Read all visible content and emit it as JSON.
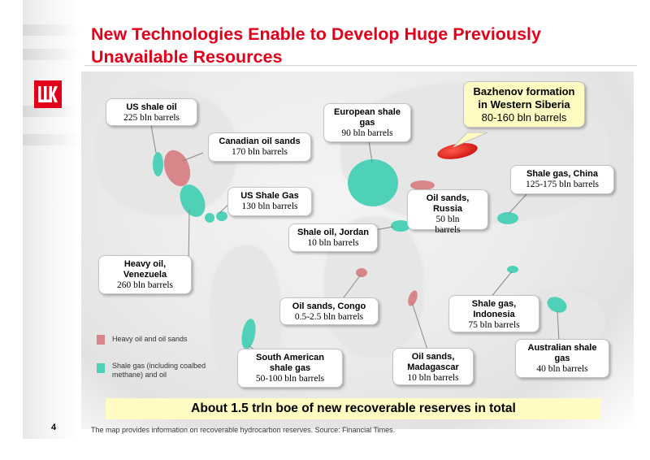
{
  "title": "New Technologies Enable to Develop Huge Previously Unavailable Resources",
  "callouts": [
    {
      "id": "us-shale-oil",
      "name": "US shale oil",
      "value": "225 bln barrels"
    },
    {
      "id": "canadian-oil-sands",
      "name": "Canadian oil sands",
      "value": "170 bln barrels"
    },
    {
      "id": "us-shale-gas",
      "name": "US Shale Gas",
      "value": "130 bln barrels"
    },
    {
      "id": "heavy-oil-venezuela",
      "name": "Heavy oil, Venezuela",
      "value": "260 bln barrels"
    },
    {
      "id": "european-shale-gas",
      "name": "European shale gas",
      "value": "90 bln barrels"
    },
    {
      "id": "bazhenov",
      "name": "Bazhenov formation in Western Siberia",
      "value": "80-160 bln barrels"
    },
    {
      "id": "oil-sands-russia",
      "name": "Oil sands, Russia",
      "value": "50 bln barrels"
    },
    {
      "id": "shale-oil-jordan",
      "name": "Shale oil, Jordan",
      "value": "10 bln barrels"
    },
    {
      "id": "shale-gas-china",
      "name": "Shale gas, China",
      "value": "125-175 bln barrels"
    },
    {
      "id": "oil-sands-congo",
      "name": "Oil sands, Congo",
      "value": "0.5-2.5 bln barrels"
    },
    {
      "id": "shale-gas-indonesia",
      "name": "Shale gas, Indonesia",
      "value": "75 bln barrels"
    },
    {
      "id": "south-american-shale-gas",
      "name": "South American shale gas",
      "value": "50-100 bln barrels"
    },
    {
      "id": "oil-sands-madagascar",
      "name": "Oil sands, Madagascar",
      "value": "10 bln barrels"
    },
    {
      "id": "australian-shale-gas",
      "name": "Australian shale gas",
      "value": "40 bln barrels"
    }
  ],
  "legend": {
    "heavy_oil_label": "Heavy oil and oil sands",
    "shale_gas_label": "Shale gas (including coalbed methane) and oil",
    "colors": {
      "heavy_oil": "#d9868a",
      "shale_gas": "#4fd1b8",
      "bazhenov": "#e3001b"
    }
  },
  "banner": "About 1.5 trln boe of new recoverable reserves in total",
  "footer_note": "The map provides information on recoverable hydrocarbon reserves. Source: Financial Times.",
  "page_number": "4"
}
